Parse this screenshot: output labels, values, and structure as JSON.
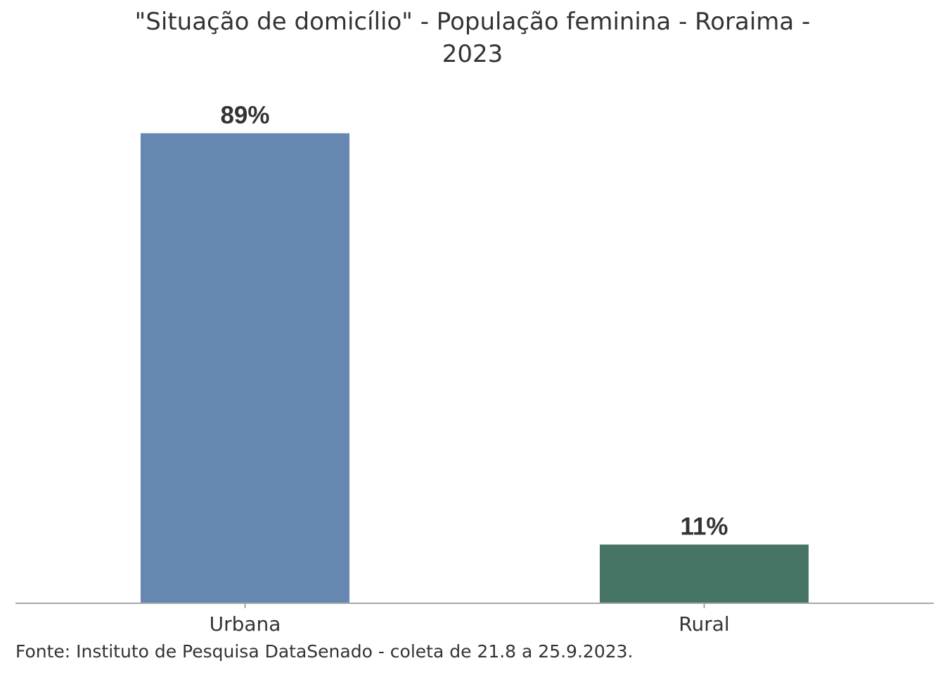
{
  "chart_data": {
    "type": "bar",
    "title_lines": [
      "\"Situação de domicílio\" - População feminina - Roraima -",
      "2023"
    ],
    "categories": [
      "Urbana",
      "Rural"
    ],
    "values": [
      89,
      11
    ],
    "value_labels": [
      "89%",
      "11%"
    ],
    "colors": [
      "#6688B0",
      "#467565"
    ],
    "ylim": [
      0,
      100
    ],
    "grid": false,
    "legend": "none",
    "xlabel": "",
    "ylabel": ""
  },
  "source_note": "Fonte: Instituto de Pesquisa DataSenado - coleta de 21.8 a 25.9.2023."
}
